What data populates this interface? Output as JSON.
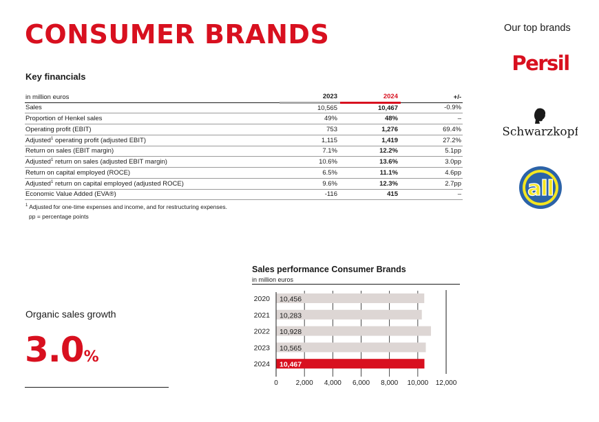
{
  "header": {
    "title": "CONSUMER BRANDS"
  },
  "brands": {
    "heading": "Our top brands",
    "logos": [
      {
        "name": "Persil",
        "color": "#d8101f"
      },
      {
        "name": "Schwarzkopf",
        "color": "#1a1a1a"
      },
      {
        "name": "all",
        "colors": [
          "#2c63a8",
          "#f4e620"
        ]
      }
    ]
  },
  "financials": {
    "heading": "Key financials",
    "unit": "in million euros",
    "columns": [
      "2023",
      "2024",
      "+/-"
    ],
    "rows": [
      {
        "label": "Sales",
        "sup": "",
        "label_rest": "",
        "v2023": "10,565",
        "v2024": "10,467",
        "change": "-0.9%"
      },
      {
        "label": "Proportion of Henkel sales",
        "sup": "",
        "label_rest": "",
        "v2023": "49%",
        "v2024": "48%",
        "change": "–"
      },
      {
        "label": "Operating profit (EBIT)",
        "sup": "",
        "label_rest": "",
        "v2023": "753",
        "v2024": "1,276",
        "change": "69.4%"
      },
      {
        "label": "Adjusted",
        "sup": "1",
        "label_rest": " operating profit (adjusted EBIT)",
        "v2023": "1,115",
        "v2024": "1,419",
        "change": "27.2%"
      },
      {
        "label": "Return on sales (EBIT margin)",
        "sup": "",
        "label_rest": "",
        "v2023": "7.1%",
        "v2024": "12.2%",
        "change": "5.1pp"
      },
      {
        "label": "Adjusted",
        "sup": "1",
        "label_rest": " return on sales (adjusted EBIT margin)",
        "v2023": "10.6%",
        "v2024": "13.6%",
        "change": "3.0pp"
      },
      {
        "label": "Return on capital employed (ROCE)",
        "sup": "",
        "label_rest": "",
        "v2023": "6.5%",
        "v2024": "11.1%",
        "change": "4.6pp"
      },
      {
        "label": "Adjusted",
        "sup": "1",
        "label_rest": " return on capital employed (adjusted ROCE)",
        "v2023": "9.6%",
        "v2024": "12.3%",
        "change": "2.7pp"
      },
      {
        "label": "Economic Value Added (EVA®)",
        "sup": "",
        "label_rest": "",
        "v2023": "-116",
        "v2024": "415",
        "change": "–"
      }
    ],
    "footnote_sup": "1",
    "footnote1": " Adjusted for one-time expenses and income, and for restructuring expenses.",
    "footnote2": "pp = percentage points"
  },
  "growth": {
    "label": "Organic sales growth",
    "value": "3.0",
    "unit": "%"
  },
  "chart_data": {
    "type": "bar",
    "orientation": "horizontal",
    "title": "Sales performance Consumer Brands",
    "subtitle": "in million euros",
    "categories": [
      "2020",
      "2021",
      "2022",
      "2023",
      "2024"
    ],
    "values": [
      10456,
      10283,
      10928,
      10565,
      10467
    ],
    "value_labels": [
      "10,456",
      "10,283",
      "10,928",
      "10,565",
      "10,467"
    ],
    "xlim": [
      0,
      12000
    ],
    "ticks": [
      0,
      2000,
      4000,
      6000,
      8000,
      10000,
      12000
    ],
    "tick_labels": [
      "0",
      "2,000",
      "4,000",
      "6,000",
      "8,000",
      "10,000",
      "12,000"
    ],
    "bar_color": "#ddd6d4",
    "highlight_color": "#d8101f",
    "highlight_index": 4
  }
}
